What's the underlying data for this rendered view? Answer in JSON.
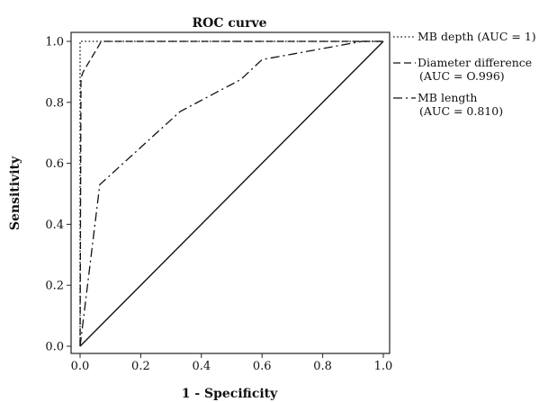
{
  "chart_data": {
    "type": "line",
    "title": "ROC curve",
    "xlabel": "1 - Specificity",
    "ylabel": "Sensitivity",
    "xlim": [
      0,
      1
    ],
    "ylim": [
      0,
      1
    ],
    "xticks": [
      "0.0",
      "0.2",
      "0.4",
      "0.6",
      "0.8",
      "1.0"
    ],
    "yticks": [
      "0.0",
      "0.2",
      "0.4",
      "0.6",
      "0.8",
      "1.0"
    ],
    "grid": false,
    "legend_position": "right",
    "series": [
      {
        "name": "MB depth",
        "legend_lines": [
          "MB depth (AUC = 1)"
        ],
        "style": "dotted",
        "x": [
          0,
          0,
          1
        ],
        "y": [
          0,
          1,
          1
        ]
      },
      {
        "name": "Diameter difference",
        "legend_lines": [
          "Diameter difference",
          "(AUC = O.996)"
        ],
        "style": "dashed",
        "x": [
          0,
          0.003,
          0.01,
          0.07,
          1
        ],
        "y": [
          0,
          0.88,
          0.9,
          1,
          1
        ]
      },
      {
        "name": "MB length",
        "legend_lines": [
          "MB length",
          "(AUC = 0.810)"
        ],
        "style": "dashdot",
        "x": [
          0,
          0.065,
          0.33,
          0.53,
          0.6,
          0.93,
          1
        ],
        "y": [
          0,
          0.53,
          0.77,
          0.875,
          0.94,
          1,
          1
        ]
      },
      {
        "name": "reference",
        "style": "solid",
        "x": [
          0,
          1
        ],
        "y": [
          0,
          1
        ]
      }
    ]
  }
}
